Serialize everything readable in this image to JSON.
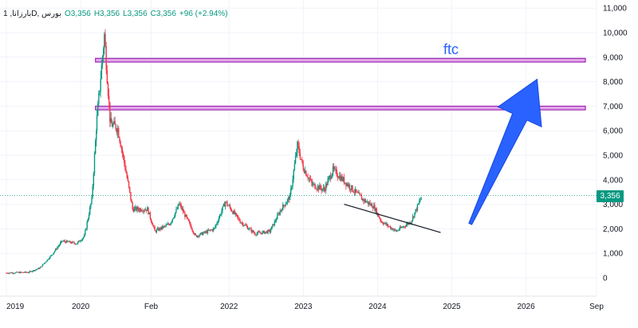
{
  "header": {
    "symbol": "1 ,بارزاناD, بورس",
    "open": "O3,356",
    "high": "H3,356",
    "low": "L3,356",
    "close": "C3,356",
    "change": "+96 (+2.94%)"
  },
  "colors": {
    "up": "#089981",
    "down": "#f23645",
    "zone_fill": "#e2a6e9",
    "zone_border": "#9c27b0",
    "arrow": "#2962ff",
    "annotation": "#2962ff"
  },
  "annotation_text": "ftc",
  "chart_data": {
    "type": "candlestick",
    "title": "",
    "xlabel": "",
    "ylabel": "",
    "ylim": [
      -700,
      11100
    ],
    "xlim": [
      2019.0,
      2026.95
    ],
    "x_tick_labels": [
      "2019",
      "2020",
      "Feb",
      "2022",
      "2023",
      "2024",
      "2025",
      "2026",
      "Sep"
    ],
    "y_tick_labels": [
      "0",
      "1,000",
      "2,000",
      "3,000",
      "4,000",
      "5,000",
      "6,000",
      "7,000",
      "8,000",
      "9,000",
      "10,000",
      "11,000"
    ],
    "last_price": 3356,
    "last_price_label": "3,356",
    "price_path": [
      {
        "x": 2019.0,
        "y": 200
      },
      {
        "x": 2019.3,
        "y": 230
      },
      {
        "x": 2019.45,
        "y": 400
      },
      {
        "x": 2019.6,
        "y": 900
      },
      {
        "x": 2019.75,
        "y": 1500
      },
      {
        "x": 2019.95,
        "y": 1400
      },
      {
        "x": 2020.05,
        "y": 1700
      },
      {
        "x": 2020.15,
        "y": 3200
      },
      {
        "x": 2020.22,
        "y": 6500
      },
      {
        "x": 2020.32,
        "y": 9900
      },
      {
        "x": 2020.4,
        "y": 6300
      },
      {
        "x": 2020.5,
        "y": 6100
      },
      {
        "x": 2020.6,
        "y": 4500
      },
      {
        "x": 2020.7,
        "y": 2800
      },
      {
        "x": 2020.9,
        "y": 2800
      },
      {
        "x": 2021.0,
        "y": 1900
      },
      {
        "x": 2021.2,
        "y": 2200
      },
      {
        "x": 2021.33,
        "y": 3000
      },
      {
        "x": 2021.55,
        "y": 1700
      },
      {
        "x": 2021.8,
        "y": 2000
      },
      {
        "x": 2021.95,
        "y": 3100
      },
      {
        "x": 2022.15,
        "y": 2300
      },
      {
        "x": 2022.35,
        "y": 1800
      },
      {
        "x": 2022.55,
        "y": 1900
      },
      {
        "x": 2022.7,
        "y": 2800
      },
      {
        "x": 2022.82,
        "y": 3300
      },
      {
        "x": 2022.92,
        "y": 5400
      },
      {
        "x": 2023.0,
        "y": 4500
      },
      {
        "x": 2023.12,
        "y": 3800
      },
      {
        "x": 2023.28,
        "y": 3600
      },
      {
        "x": 2023.4,
        "y": 4400
      },
      {
        "x": 2023.6,
        "y": 3800
      },
      {
        "x": 2023.8,
        "y": 3200
      },
      {
        "x": 2023.95,
        "y": 2900
      },
      {
        "x": 2024.05,
        "y": 2300
      },
      {
        "x": 2024.25,
        "y": 1900
      },
      {
        "x": 2024.45,
        "y": 2300
      },
      {
        "x": 2024.6,
        "y": 3356
      }
    ],
    "horizontal_zones": [
      {
        "y_low": 8800,
        "y_high": 8950,
        "x_start": 2020.2,
        "x_end": 2026.8
      },
      {
        "y_low": 6850,
        "y_high": 7000,
        "x_start": 2020.2,
        "x_end": 2026.8
      }
    ],
    "trend_line": {
      "x1": 2023.55,
      "y1": 3000,
      "x2": 2024.85,
      "y2": 1850
    },
    "arrow": {
      "x1": 2025.25,
      "y1": 2200,
      "x2": 2026.15,
      "y2": 8100
    }
  }
}
